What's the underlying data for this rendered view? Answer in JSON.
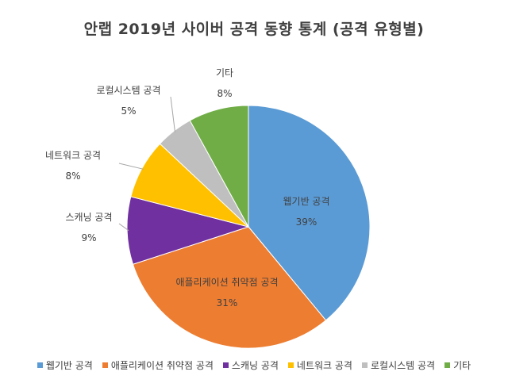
{
  "chart_data": {
    "type": "pie",
    "title": "안랩 2019년 사이버 공격 동향 통계 (공격 유형별)",
    "categories": [
      "웹기반 공격",
      "애플리케이션 취약점 공격",
      "스캐닝 공격",
      "네트워크 공격",
      "로컬시스템 공격",
      "기타"
    ],
    "values": [
      39,
      31,
      9,
      8,
      5,
      8
    ],
    "value_labels": [
      "39%",
      "31%",
      "9%",
      "8%",
      "5%",
      "8%"
    ],
    "colors": [
      "#5b9bd5",
      "#ed7d31",
      "#7030a0",
      "#ffc000",
      "#bfbfbf",
      "#70ad47"
    ],
    "legend": "bottom"
  }
}
